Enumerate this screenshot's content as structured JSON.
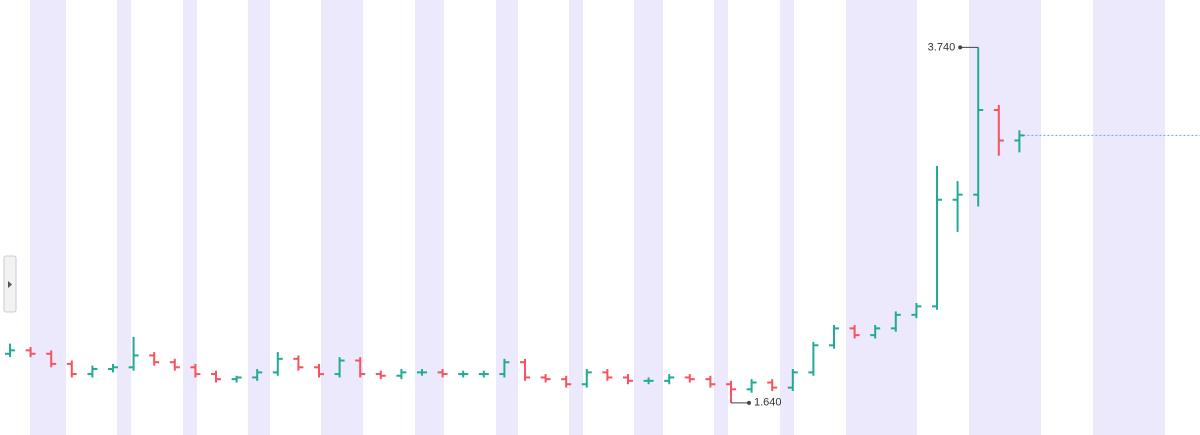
{
  "chart_data": {
    "type": "ohlc",
    "open": [
      1.93,
      1.95,
      1.93,
      1.87,
      1.81,
      1.84,
      1.85,
      1.92,
      1.88,
      1.85,
      1.81,
      1.78,
      1.79,
      1.82,
      1.9,
      1.85,
      1.81,
      1.89,
      1.81,
      1.8,
      1.82,
      1.82,
      1.81,
      1.81,
      1.81,
      1.88,
      1.79,
      1.78,
      1.75,
      1.82,
      1.79,
      1.77,
      1.77,
      1.79,
      1.78,
      1.75,
      1.72,
      1.76,
      1.73,
      1.82,
      1.98,
      2.08,
      2.04,
      2.08,
      2.16,
      2.21,
      2.84,
      2.87,
      3.37,
      3.19
    ],
    "high": [
      1.99,
      1.97,
      1.95,
      1.89,
      1.86,
      1.87,
      2.03,
      1.94,
      1.9,
      1.87,
      1.83,
      1.8,
      1.84,
      1.94,
      1.92,
      1.87,
      1.91,
      1.91,
      1.83,
      1.84,
      1.84,
      1.84,
      1.83,
      1.83,
      1.9,
      1.9,
      1.81,
      1.8,
      1.84,
      1.84,
      1.81,
      1.79,
      1.81,
      1.81,
      1.8,
      1.77,
      1.78,
      1.78,
      1.84,
      2.0,
      2.1,
      2.1,
      2.1,
      2.18,
      2.23,
      3.04,
      2.95,
      3.74,
      3.4,
      3.25
    ],
    "low": [
      1.91,
      1.91,
      1.85,
      1.79,
      1.79,
      1.82,
      1.83,
      1.86,
      1.83,
      1.79,
      1.76,
      1.76,
      1.77,
      1.8,
      1.83,
      1.79,
      1.79,
      1.79,
      1.78,
      1.78,
      1.8,
      1.79,
      1.79,
      1.79,
      1.79,
      1.77,
      1.76,
      1.73,
      1.73,
      1.77,
      1.75,
      1.75,
      1.75,
      1.76,
      1.73,
      1.64,
      1.7,
      1.71,
      1.71,
      1.8,
      1.96,
      2.02,
      2.02,
      2.06,
      2.14,
      2.19,
      2.65,
      2.8,
      3.1,
      3.12
    ],
    "close": [
      1.95,
      1.93,
      1.87,
      1.81,
      1.84,
      1.85,
      1.92,
      1.88,
      1.85,
      1.81,
      1.78,
      1.79,
      1.82,
      1.9,
      1.85,
      1.81,
      1.89,
      1.81,
      1.8,
      1.82,
      1.82,
      1.81,
      1.81,
      1.81,
      1.88,
      1.79,
      1.78,
      1.75,
      1.82,
      1.79,
      1.77,
      1.77,
      1.79,
      1.78,
      1.75,
      1.72,
      1.76,
      1.73,
      1.82,
      1.98,
      2.08,
      2.04,
      2.08,
      2.16,
      2.21,
      2.84,
      2.87,
      3.37,
      3.19,
      3.22
    ],
    "up_color": "#22ab94",
    "down_color": "#f7525f",
    "ylim": [
      1.45,
      4.02
    ],
    "annotations": [
      {
        "value": 3.74,
        "label": "3.740"
      },
      {
        "value": 1.64,
        "label": "1.640"
      }
    ]
  }
}
